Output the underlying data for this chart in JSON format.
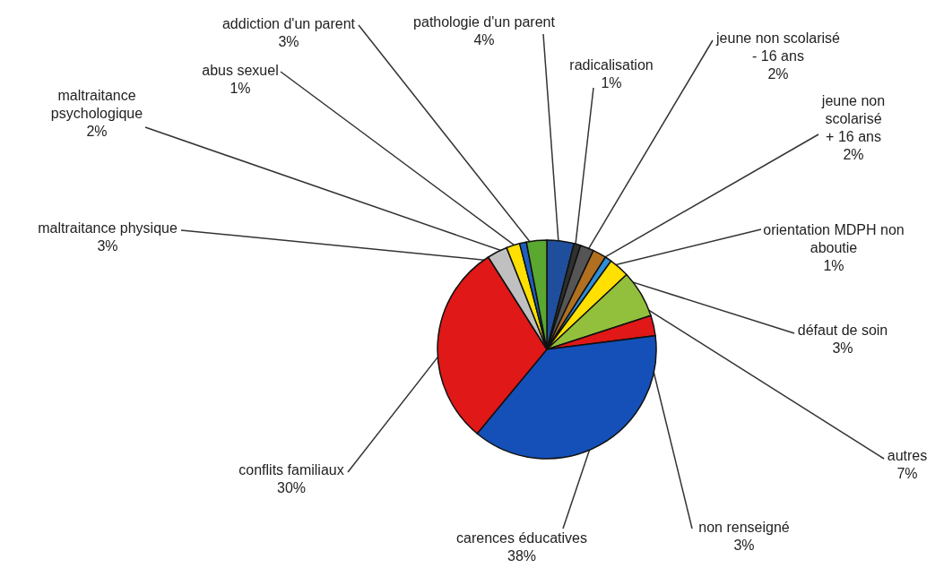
{
  "chart_data": {
    "type": "pie",
    "categories": [
      "pathologie d'un parent",
      "radicalisation",
      "jeune non scolarisé - 16 ans",
      "jeune non scolarisé + 16 ans",
      "orientation MDPH non aboutie",
      "défaut de soin",
      "autres",
      "non renseigné",
      "carences éducatives",
      "conflits familiaux",
      "maltraitance physique",
      "maltraitance psychologique",
      "abus sexuel",
      "addiction d'un parent"
    ],
    "values": [
      4,
      1,
      2,
      2,
      1,
      3,
      7,
      3,
      38,
      30,
      3,
      2,
      1,
      3
    ],
    "value_labels": [
      "4%",
      "1%",
      "2%",
      "2%",
      "1%",
      "3%",
      "7%",
      "3%",
      "38%",
      "30%",
      "3%",
      "2%",
      "1%",
      "3%"
    ],
    "colors": [
      "#1f4e9c",
      "#303030",
      "#555555",
      "#b07020",
      "#2e8fd8",
      "#ffe000",
      "#92c03c",
      "#e01818",
      "#1450b8",
      "#e01818",
      "#c0c0c0",
      "#ffe000",
      "#1f5fc0",
      "#5aa830"
    ]
  }
}
